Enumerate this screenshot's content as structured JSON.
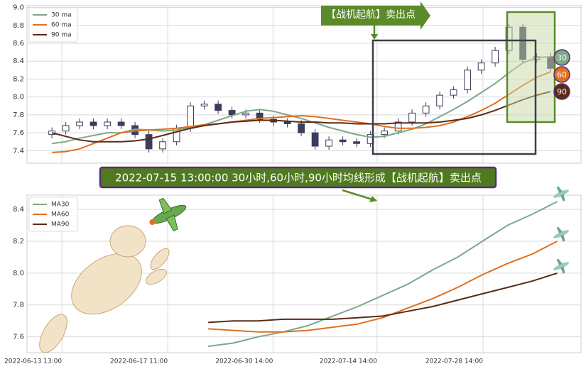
{
  "chart_data": [
    {
      "type": "candlestick",
      "color": "#3a3d5c",
      "up_fill": "#ffffff",
      "xlim": [
        0,
        100
      ],
      "ylim": [
        7.26,
        9.02
      ],
      "yticks": [
        7.4,
        7.6,
        7.8,
        {
          "value": 8,
          "label": "8.0"
        },
        8.2,
        8.4,
        8.6,
        8.8,
        {
          "value": 9,
          "label": "9.0"
        }
      ],
      "grid": true,
      "legend": "upper left",
      "x": [
        4.5,
        7,
        9.5,
        12,
        14.5,
        17,
        19.5,
        22,
        24.5,
        27,
        29.5,
        32,
        34.5,
        37,
        39.5,
        42,
        44.5,
        47,
        49.5,
        52,
        54.5,
        57,
        59.5,
        62,
        64.5,
        67,
        69.5,
        72,
        74.5,
        77,
        79.5,
        82,
        84.5,
        87,
        89.5,
        92,
        94.5
      ],
      "open": [
        7.58,
        7.62,
        7.68,
        7.72,
        7.68,
        7.72,
        7.68,
        7.58,
        7.42,
        7.5,
        7.65,
        7.9,
        7.92,
        7.85,
        7.8,
        7.82,
        7.75,
        7.72,
        7.7,
        7.6,
        7.45,
        7.52,
        7.5,
        7.48,
        7.58,
        7.62,
        7.72,
        7.82,
        7.9,
        8.02,
        8.08,
        8.3,
        8.38,
        8.52,
        8.78,
        8.42,
        8.45
      ],
      "close": [
        7.62,
        7.68,
        7.72,
        7.68,
        7.72,
        7.68,
        7.58,
        7.42,
        7.5,
        7.65,
        7.9,
        7.92,
        7.85,
        7.8,
        7.82,
        7.75,
        7.72,
        7.7,
        7.6,
        7.45,
        7.52,
        7.5,
        7.48,
        7.58,
        7.62,
        7.72,
        7.82,
        7.9,
        8.02,
        8.08,
        8.3,
        8.38,
        8.52,
        8.78,
        8.42,
        8.45,
        8.32
      ],
      "high": [
        7.66,
        7.72,
        7.76,
        7.76,
        7.76,
        7.76,
        7.72,
        7.62,
        7.54,
        7.69,
        7.94,
        7.96,
        7.96,
        7.89,
        7.86,
        7.86,
        7.79,
        7.76,
        7.74,
        7.64,
        7.56,
        7.56,
        7.54,
        7.62,
        7.66,
        7.76,
        7.86,
        7.94,
        8.06,
        8.12,
        8.34,
        8.42,
        8.56,
        8.82,
        8.82,
        8.49,
        8.49
      ],
      "low": [
        7.54,
        7.58,
        7.64,
        7.64,
        7.64,
        7.64,
        7.54,
        7.38,
        7.38,
        7.46,
        7.61,
        7.86,
        7.81,
        7.76,
        7.76,
        7.71,
        7.68,
        7.66,
        7.56,
        7.41,
        7.41,
        7.46,
        7.44,
        7.44,
        7.54,
        7.58,
        7.68,
        7.78,
        7.86,
        7.98,
        8.04,
        8.26,
        8.34,
        8.48,
        8.38,
        8.38,
        8.28
      ],
      "series": [
        {
          "name": "30 ma",
          "color": "#7ea88a",
          "values": [
            7.48,
            7.5,
            7.54,
            7.57,
            7.6,
            7.6,
            7.64,
            7.63,
            7.62,
            7.63,
            7.66,
            7.69,
            7.74,
            7.79,
            7.84,
            7.86,
            7.84,
            7.8,
            7.76,
            7.71,
            7.66,
            7.62,
            7.58,
            7.55,
            7.56,
            7.6,
            7.64,
            7.7,
            7.78,
            7.86,
            7.95,
            8.05,
            8.15,
            8.27,
            8.38,
            8.44,
            8.45
          ]
        },
        {
          "name": "60 ma",
          "color": "#e07020",
          "values": [
            7.38,
            7.39,
            7.42,
            7.48,
            7.54,
            7.6,
            7.62,
            7.63,
            7.64,
            7.65,
            7.67,
            7.69,
            7.7,
            7.72,
            7.74,
            7.76,
            7.77,
            7.78,
            7.79,
            7.78,
            7.76,
            7.74,
            7.72,
            7.7,
            7.67,
            7.65,
            7.65,
            7.66,
            7.68,
            7.72,
            7.78,
            7.85,
            7.93,
            8.03,
            8.13,
            8.22,
            8.28
          ]
        },
        {
          "name": "90 ma",
          "color": "#5a2a18",
          "values": [
            7.6,
            7.56,
            7.52,
            7.5,
            7.5,
            7.5,
            7.51,
            7.53,
            7.57,
            7.61,
            7.65,
            7.68,
            7.7,
            7.72,
            7.73,
            7.74,
            7.74,
            7.73,
            7.72,
            7.72,
            7.71,
            7.71,
            7.7,
            7.7,
            7.7,
            7.71,
            7.71,
            7.71,
            7.72,
            7.74,
            7.76,
            7.8,
            7.85,
            7.91,
            7.97,
            8.02,
            8.06
          ]
        }
      ],
      "annotation": "【战机起航】卖出点",
      "marker_labels": [
        "30",
        "60",
        "90"
      ]
    },
    {
      "type": "line",
      "xlim": [
        0,
        100
      ],
      "ylim": [
        7.5,
        8.49
      ],
      "xticks": [
        {
          "value": 6.3,
          "label": "2022-06-13 13:00"
        },
        {
          "value": 25.4,
          "label": "2022-06-17 11:00"
        },
        {
          "value": 44.4,
          "label": "2022-06-30 14:00"
        },
        {
          "value": 63.2,
          "label": "2022-07-14 14:00"
        },
        {
          "value": 82.3,
          "label": "2022-07-28 14:00"
        }
      ],
      "yticks": [
        7.6,
        7.8,
        {
          "value": 8,
          "label": "8.0"
        },
        8.2,
        8.4
      ],
      "grid": true,
      "legend": "upper left",
      "x": [
        32.7,
        37.2,
        41.7,
        46.2,
        50.7,
        55.2,
        59.7,
        64.2,
        68.7,
        73.2,
        77.7,
        82.2,
        86.7,
        91.2,
        95.7
      ],
      "series": [
        {
          "name": "MA30",
          "color": "#7ea88a",
          "values": [
            7.54,
            7.56,
            7.6,
            7.63,
            7.67,
            7.73,
            7.79,
            7.86,
            7.93,
            8.02,
            8.1,
            8.2,
            8.3,
            8.37,
            8.45
          ]
        },
        {
          "name": "MA60",
          "color": "#e07020",
          "values": [
            7.65,
            7.64,
            7.63,
            7.63,
            7.64,
            7.66,
            7.68,
            7.72,
            7.78,
            7.84,
            7.91,
            7.99,
            8.06,
            8.12,
            8.2
          ]
        },
        {
          "name": "MA90",
          "color": "#5a2a18",
          "values": [
            7.69,
            7.7,
            7.7,
            7.71,
            7.71,
            7.71,
            7.72,
            7.73,
            7.76,
            7.79,
            7.83,
            7.87,
            7.91,
            7.95,
            8.0
          ]
        }
      ],
      "annotation": "2022-07-15 13:00:00 30小时,60小时,90小时均线形成【战机起航】卖出点"
    }
  ]
}
